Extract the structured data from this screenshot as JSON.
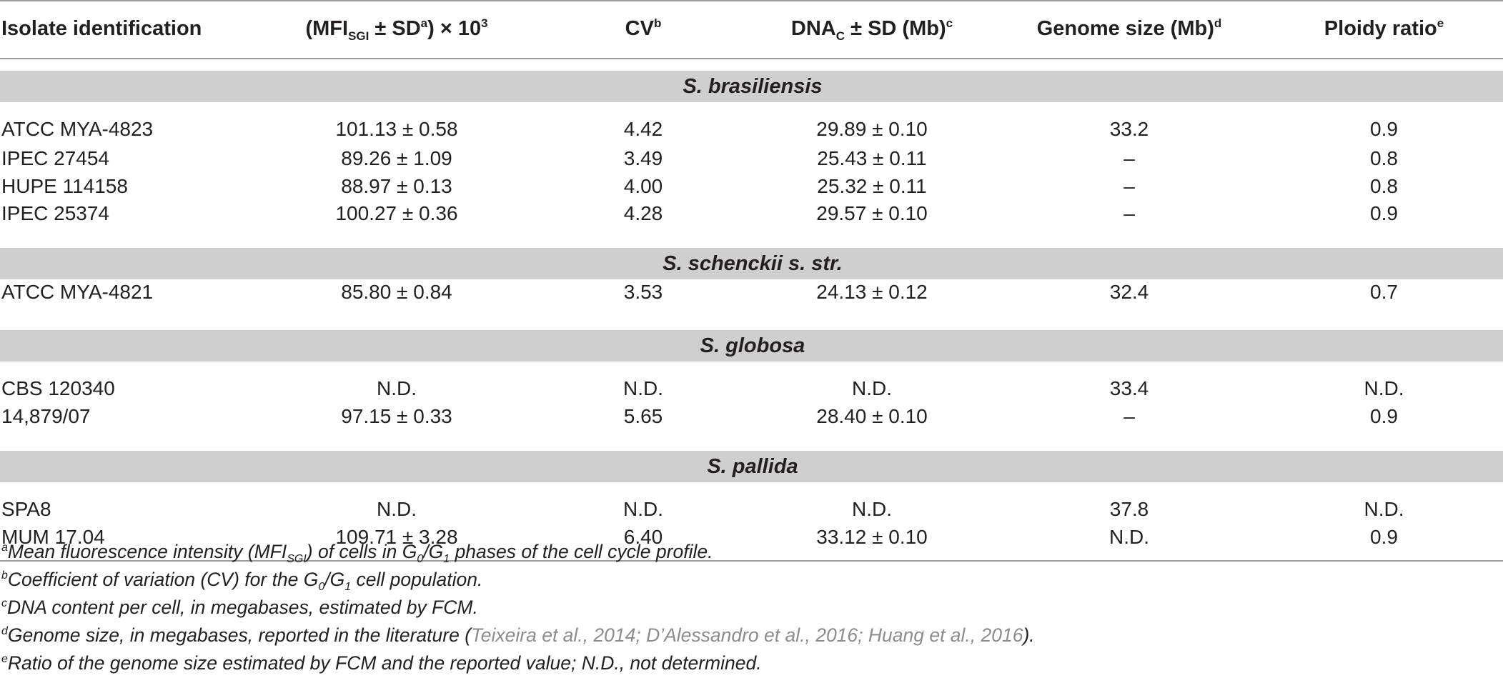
{
  "header": {
    "isolate": "Isolate identification",
    "mfi_open": "(MFI",
    "mfi_sub": "SGI",
    "mfi_mid": " ± SD",
    "mfi_sup_a": "a",
    "mfi_close": ") × 10",
    "mfi_exp": "3",
    "cv": "CV",
    "cv_sup": "b",
    "dna": "DNA",
    "dna_sub": "C",
    "dna_rest": " ± SD (Mb)",
    "dna_sup": "c",
    "genome": "Genome size (Mb)",
    "genome_sup": "d",
    "ploidy": "Ploidy ratio",
    "ploidy_sup": "e"
  },
  "groups": [
    {
      "name": "S. brasiliensis",
      "rows": [
        {
          "isolate": "ATCC MYA-4823",
          "mfi": "101.13 ± 0.58",
          "cv": "4.42",
          "dna": "29.89 ± 0.10",
          "genome": "33.2",
          "ploidy": "0.9"
        },
        {
          "isolate": "IPEC 27454",
          "mfi": "89.26 ± 1.09",
          "cv": "3.49",
          "dna": "25.43 ± 0.11",
          "genome": "–",
          "ploidy": "0.8"
        },
        {
          "isolate": "HUPE 114158",
          "mfi": "88.97 ± 0.13",
          "cv": "4.00",
          "dna": "25.32 ± 0.11",
          "genome": "–",
          "ploidy": "0.8"
        },
        {
          "isolate": "IPEC 25374",
          "mfi": "100.27 ± 0.36",
          "cv": "4.28",
          "dna": "29.57 ± 0.10",
          "genome": "–",
          "ploidy": "0.9"
        }
      ]
    },
    {
      "name": "S. schenckii s. str.",
      "rows": [
        {
          "isolate": "ATCC MYA-4821",
          "mfi": "85.80 ± 0.84",
          "cv": "3.53",
          "dna": "24.13 ± 0.12",
          "genome": "32.4",
          "ploidy": "0.7"
        }
      ]
    },
    {
      "name": "S. globosa",
      "rows": [
        {
          "isolate": "CBS 120340",
          "mfi": "N.D.",
          "cv": "N.D.",
          "dna": "N.D.",
          "genome": "33.4",
          "ploidy": "N.D."
        },
        {
          "isolate": "14,879/07",
          "mfi": "97.15 ± 0.33",
          "cv": "5.65",
          "dna": "28.40 ± 0.10",
          "genome": "–",
          "ploidy": "0.9"
        }
      ]
    },
    {
      "name": "S. pallida",
      "rows": [
        {
          "isolate": "SPA8",
          "mfi": "N.D.",
          "cv": "N.D.",
          "dna": "N.D.",
          "genome": "37.8",
          "ploidy": "N.D."
        },
        {
          "isolate": "MUM 17.04",
          "mfi": "109.71 ± 3.28",
          "cv": "6.40",
          "dna": "33.12 ± 0.10",
          "genome": "N.D.",
          "ploidy": "0.9"
        }
      ]
    }
  ],
  "footnotes": {
    "a": {
      "mark": "a",
      "t1": "Mean fluorescence intensity (MFI",
      "sub1": "SGI",
      "t2": ") of cells in G",
      "sub2": "0",
      "t3": "/G",
      "sub3": "1",
      "t4": " phases of the cell cycle profile."
    },
    "b": {
      "mark": "b",
      "t1": "Coefficient of variation (CV) for the G",
      "sub1": "0",
      "t2": "/G",
      "sub2": "1",
      "t3": " cell population."
    },
    "c": {
      "mark": "c",
      "t1": "DNA content per cell, in megabases, estimated by FCM."
    },
    "d": {
      "mark": "d",
      "t1": "Genome size, in megabases, reported in the literature (",
      "cite": "Teixeira et al., 2014; D’Alessandro et al., 2016; Huang et al., 2016",
      "t2": ")."
    },
    "e": {
      "mark": "e",
      "t1": "Ratio of the genome size estimated by FCM and the reported value; N.D., not determined."
    }
  }
}
